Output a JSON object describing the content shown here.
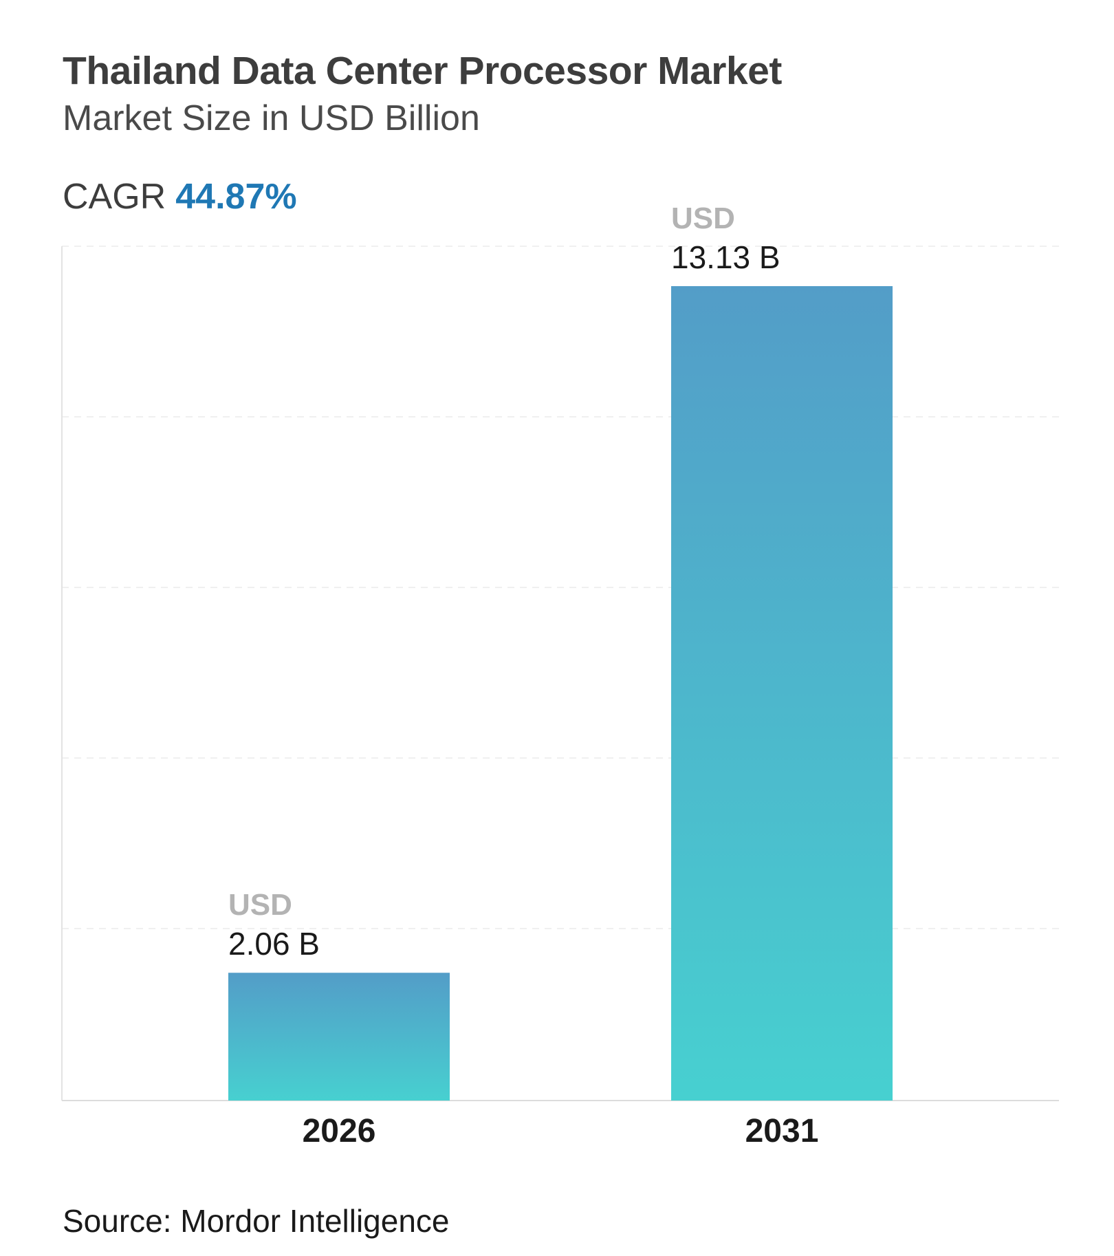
{
  "header": {
    "title": "Thailand Data Center Processor Market",
    "subtitle": "Market Size in USD Billion",
    "cagr_label": "CAGR",
    "cagr_value": "44.87%"
  },
  "footer": {
    "source": "Source: Mordor Intelligence"
  },
  "colors": {
    "bar_top": "#539dc8",
    "bar_bottom": "#47d0d0",
    "cagr_accent": "#1f78b4",
    "currency_label": "#b3b3b3",
    "value_label": "#1a1a1a"
  },
  "chart_data": {
    "type": "bar",
    "categories": [
      "2026",
      "2031"
    ],
    "values": [
      2.06,
      13.13
    ],
    "value_prefix": "USD",
    "value_labels": [
      "2.06 B",
      "13.13 B"
    ],
    "ylim": [
      0,
      13.13
    ],
    "grid": true
  }
}
